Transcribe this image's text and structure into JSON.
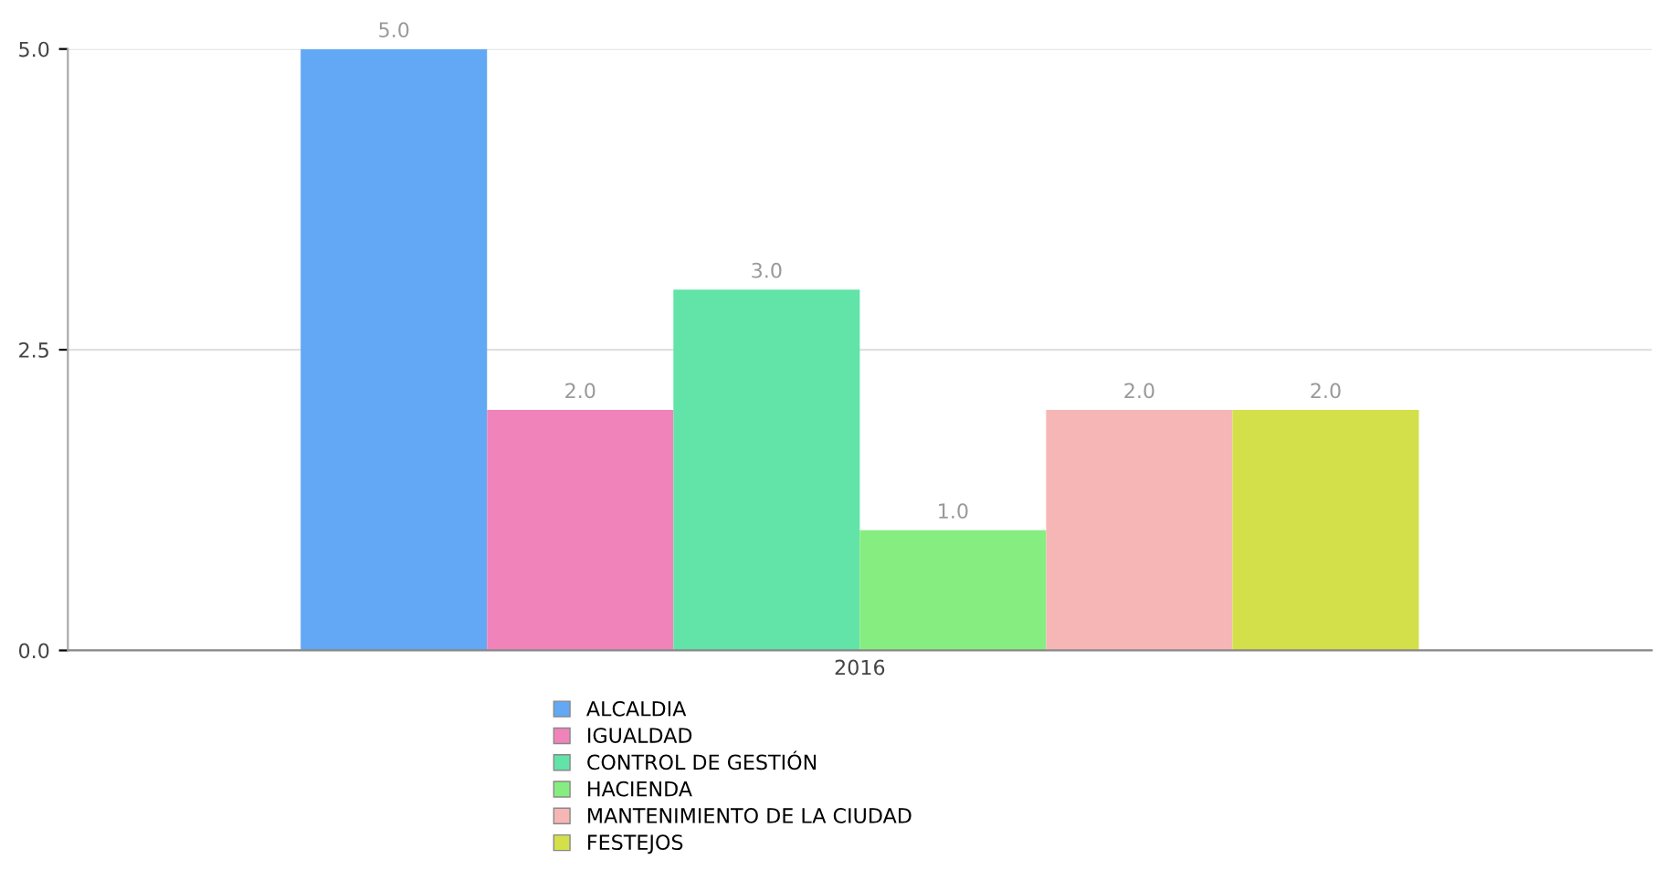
{
  "chart_data": {
    "type": "bar",
    "categories": [
      "2016"
    ],
    "series": [
      {
        "name": "ALCALDIA",
        "color": "#62a8f4",
        "values": [
          5
        ],
        "value_labels": [
          "5.0"
        ]
      },
      {
        "name": "IGUALDAD",
        "color": "#f083ba",
        "values": [
          2
        ],
        "value_labels": [
          "2.0"
        ]
      },
      {
        "name": "CONTROL DE GESTIÓN",
        "color": "#62e3a8",
        "values": [
          3
        ],
        "value_labels": [
          "3.0"
        ]
      },
      {
        "name": "HACIENDA",
        "color": "#86ee80",
        "values": [
          1
        ],
        "value_labels": [
          "1.0"
        ]
      },
      {
        "name": "MANTENIMIENTO DE LA CIUDAD",
        "color": "#f6b6b6",
        "values": [
          2
        ],
        "value_labels": [
          "2.0"
        ]
      },
      {
        "name": "FESTEJOS",
        "color": "#d3e04a",
        "values": [
          2
        ],
        "value_labels": [
          "2.0"
        ]
      }
    ],
    "ylim": [
      0,
      5
    ],
    "yticks": [
      {
        "value": 0,
        "label": "0.0"
      },
      {
        "value": 2.5,
        "label": "2.5"
      },
      {
        "value": 5,
        "label": "5.0"
      }
    ],
    "grid": "y",
    "legend": "bottom"
  }
}
